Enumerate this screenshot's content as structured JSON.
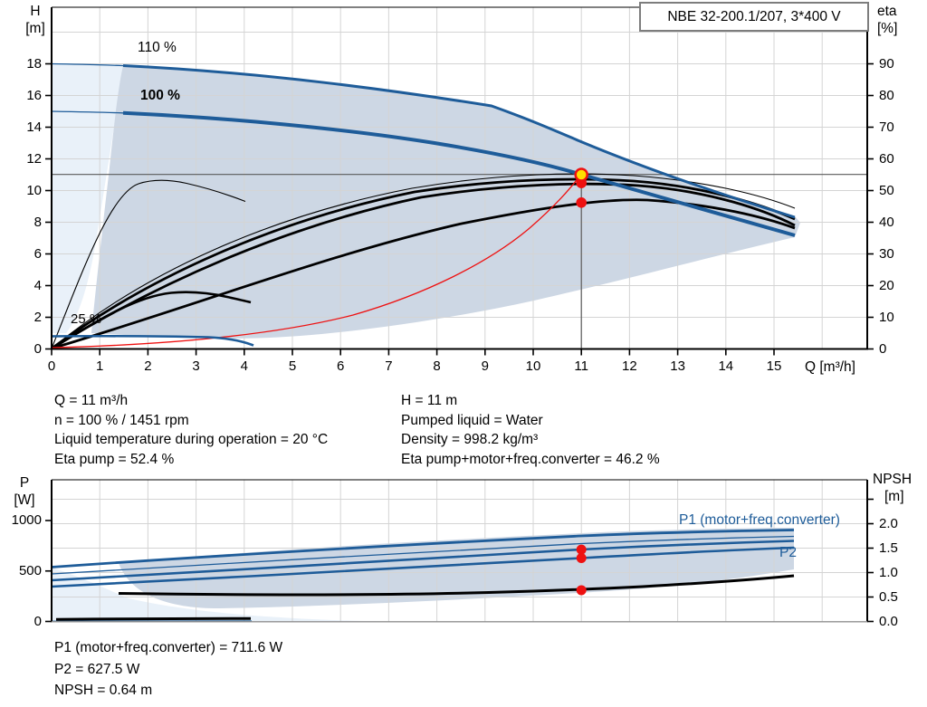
{
  "title_box": "NBE 32-200.1/207, 3*400 V",
  "top_chart": {
    "left_axis_title": [
      "H",
      "[m]"
    ],
    "right_axis_title": [
      "eta",
      "[%]"
    ],
    "x_axis_label": "Q [m³/h]",
    "x_ticks": [
      "0",
      "1",
      "2",
      "3",
      "4",
      "5",
      "6",
      "7",
      "8",
      "9",
      "10",
      "11",
      "12",
      "13",
      "14",
      "15"
    ],
    "h_ticks": [
      "0",
      "2",
      "4",
      "6",
      "8",
      "10",
      "12",
      "14",
      "16",
      "18"
    ],
    "eta_ticks": [
      "0",
      "10",
      "20",
      "30",
      "40",
      "50",
      "60",
      "70",
      "80",
      "90"
    ],
    "speed_labels": {
      "s110": "110 %",
      "s100": "100 %",
      "s25": "25 %"
    }
  },
  "info_top_left": [
    "Q = 11 m³/h",
    "n = 100 % / 1451 rpm",
    "Liquid temperature during operation = 20 °C",
    "Eta pump = 52.4 %"
  ],
  "info_top_right": [
    "H = 11 m",
    "Pumped liquid = Water",
    "Density = 998.2 kg/m³",
    "Eta pump+motor+freq.converter = 46.2 %"
  ],
  "bottom_chart": {
    "left_axis_title": [
      "P",
      "[W]"
    ],
    "right_axis_title": [
      "NPSH",
      "[m]"
    ],
    "p_ticks": [
      "0",
      "500",
      "1000"
    ],
    "npsh_ticks": [
      "0.0",
      "0.5",
      "1.0",
      "1.5",
      "2.0"
    ],
    "curve_labels": {
      "p1": "P1 (motor+freq.converter)",
      "p2": "P2"
    }
  },
  "info_bottom": [
    "P1 (motor+freq.converter) = 711.6 W",
    "P2 = 627.5 W",
    "NPSH = 0.64 m"
  ],
  "colors": {
    "curve_blue": "#1e5c99",
    "band_dark": "#cdd7e4",
    "band_light": "#e9f1f9",
    "red": "#ee1111",
    "yellow": "#ffdf00",
    "grid": "#d4d4d4",
    "crosshair": "#5a5a5a"
  },
  "operating_point": {
    "Q": 11,
    "H": 11,
    "eta_pump": 52.4,
    "eta_total": 46.2,
    "P1_W": 711.6,
    "P2_W": 627.5,
    "NPSH_m": 0.64
  },
  "chart_data": [
    {
      "type": "line",
      "title": "QH performance curves",
      "xlabel": "Q [m³/h]",
      "ylabel_left": "H [m]",
      "ylabel_right": "eta [%]",
      "xlim": [
        0,
        16.9
      ],
      "ylim_left": [
        0,
        21.5
      ],
      "ylim_right": [
        0,
        107
      ],
      "grid": true,
      "series": [
        {
          "name": "pump curve 110 %",
          "axis": "H",
          "x": [
            0,
            3,
            6,
            9.2,
            11,
            13,
            15.4
          ],
          "y": [
            18.1,
            17.5,
            16.4,
            15.3,
            13.1,
            10.9,
            8.3
          ]
        },
        {
          "name": "pump curve 100 % (duty speed)",
          "axis": "H",
          "x": [
            0,
            2,
            4,
            6,
            8,
            10,
            11,
            13,
            15.4
          ],
          "y": [
            15.0,
            14.8,
            14.3,
            13.6,
            12.6,
            11.6,
            11.0,
            9.4,
            7.2
          ]
        },
        {
          "name": "pump curve 25 %",
          "axis": "H",
          "x": [
            0,
            1,
            2,
            3,
            4.2
          ],
          "y": [
            0.8,
            0.8,
            0.75,
            0.7,
            0.25
          ]
        },
        {
          "name": "eta pump 100 %",
          "axis": "eta",
          "x": [
            0,
            2,
            4,
            6,
            8,
            10,
            11,
            12,
            14,
            15.4
          ],
          "y": [
            0,
            14,
            27,
            38,
            46,
            51.5,
            52.4,
            52.5,
            48,
            41
          ]
        },
        {
          "name": "eta pump+motor+freq.converter 100 %",
          "axis": "eta",
          "x": [
            0,
            2,
            4,
            6,
            8,
            10,
            11,
            12,
            14,
            15.4
          ],
          "y": [
            0,
            8,
            18,
            28,
            37,
            44,
            46.2,
            46.5,
            43,
            38
          ]
        },
        {
          "name": "eta pump 25 %",
          "axis": "eta",
          "x": [
            0,
            0.7,
            1.4,
            2.1,
            2.75,
            3.5,
            4.2
          ],
          "y": [
            0,
            21,
            38,
            48,
            52,
            50,
            46.5
          ]
        },
        {
          "name": "eta total 25 %",
          "axis": "eta",
          "x": [
            0,
            1,
            2,
            2.9,
            3.6,
            4.2
          ],
          "y": [
            0,
            9,
            15.5,
            17.7,
            16.5,
            14.6
          ]
        },
        {
          "name": "system curve (red)",
          "axis": "H",
          "x": [
            0,
            2,
            4,
            6,
            8,
            10,
            11
          ],
          "y": [
            0,
            0.4,
            1.5,
            3.3,
            5.8,
            9.1,
            11.0
          ]
        }
      ],
      "operating_point": {
        "Q": 11,
        "H": 11
      }
    },
    {
      "type": "line",
      "title": "Power and NPSH curves",
      "xlabel": "Q [m³/h]",
      "ylabel_left": "P [W]",
      "ylabel_right": "NPSH [m]",
      "xlim": [
        0,
        16.9
      ],
      "ylim_left": [
        0,
        1400
      ],
      "ylim_right": [
        0,
        2.9
      ],
      "grid": true,
      "series": [
        {
          "name": "P1 (motor+freq.converter)",
          "axis": "P",
          "x": [
            0,
            2,
            4,
            6,
            8,
            10,
            11,
            13,
            15.4
          ],
          "y": [
            408,
            445,
            490,
            540,
            595,
            670,
            711.6,
            760,
            800
          ]
        },
        {
          "name": "P2",
          "axis": "P",
          "x": [
            0,
            2,
            4,
            6,
            8,
            10,
            11,
            13,
            15.4
          ],
          "y": [
            345,
            385,
            425,
            470,
            525,
            590,
            627.5,
            680,
            730
          ]
        },
        {
          "name": "P1 envelope max (110 %)",
          "axis": "P",
          "x": [
            0,
            4,
            8,
            11,
            15.4
          ],
          "y": [
            542,
            610,
            700,
            848,
            905
          ]
        },
        {
          "name": "P 25 %",
          "axis": "P",
          "x": [
            0,
            1,
            2,
            3,
            4.2
          ],
          "y": [
            20,
            22,
            25,
            28,
            30
          ]
        },
        {
          "name": "NPSH",
          "axis": "NPSH",
          "x": [
            1.4,
            4,
            7,
            9,
            11,
            13,
            15.4
          ],
          "y": [
            0.56,
            0.55,
            0.56,
            0.59,
            0.64,
            0.77,
            0.94
          ]
        }
      ],
      "operating_point": {
        "Q": 11,
        "P1": 711.6,
        "P2": 627.5,
        "NPSH": 0.64
      }
    }
  ]
}
